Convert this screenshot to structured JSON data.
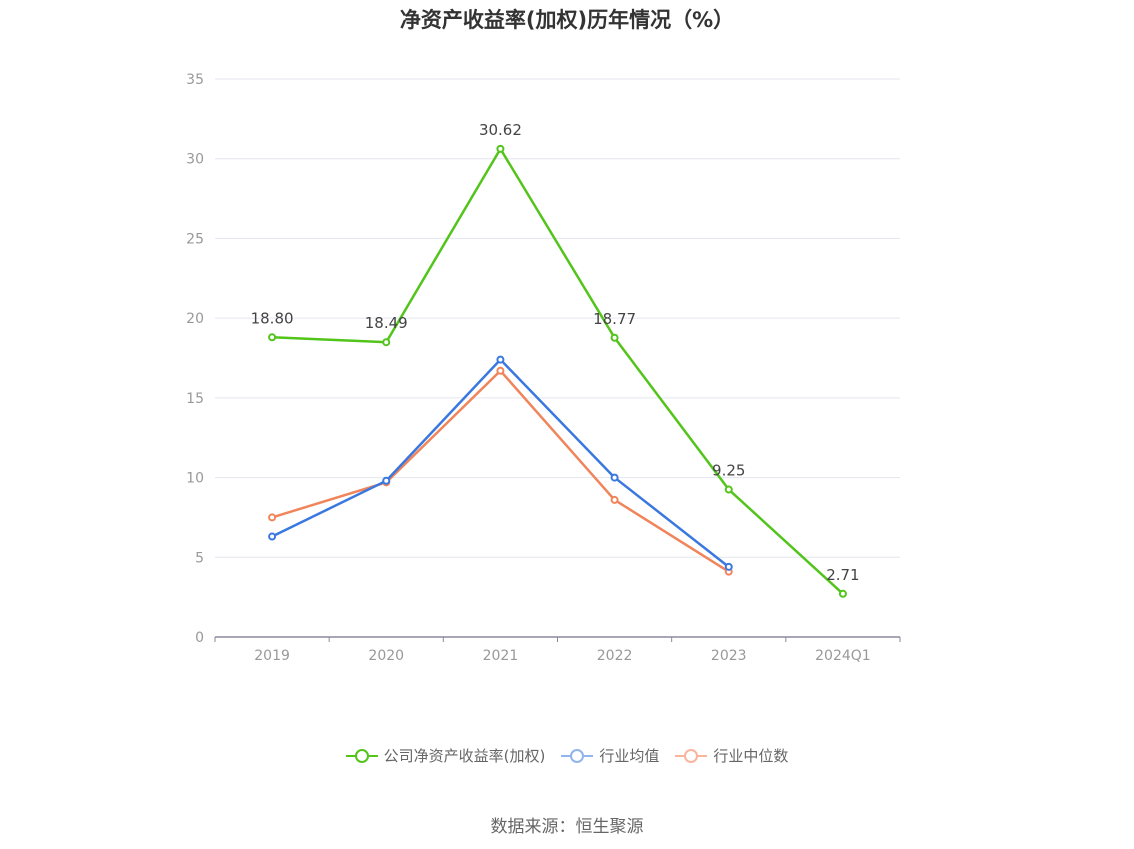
{
  "chart_data": {
    "type": "line",
    "title": "净资产收益率(加权)历年情况（%）",
    "categories": [
      "2019",
      "2020",
      "2021",
      "2022",
      "2023",
      "2024Q1"
    ],
    "ylim": [
      0,
      35
    ],
    "yticks": [
      0,
      5,
      10,
      15,
      20,
      25,
      30,
      35
    ],
    "grid": true,
    "legend_position": "bottom",
    "series": [
      {
        "name": "公司净资产收益率(加权)",
        "color": "#52c41a",
        "values": [
          18.8,
          18.49,
          30.62,
          18.77,
          9.25,
          2.71
        ],
        "labels": [
          "18.80",
          "18.49",
          "30.62",
          "18.77",
          "9.25",
          "2.71"
        ]
      },
      {
        "name": "行业均值",
        "color": "#3a78e0",
        "values": [
          6.3,
          9.8,
          17.4,
          10.0,
          4.4,
          null
        ]
      },
      {
        "name": "行业中位数",
        "color": "#f0845a",
        "values": [
          7.5,
          9.7,
          16.7,
          8.6,
          4.1,
          null
        ]
      }
    ]
  },
  "legend": {
    "items": [
      {
        "label": "公司净资产收益率(加权)",
        "color": "#52c41a"
      },
      {
        "label": "行业均值",
        "color": "#8fb4ee"
      },
      {
        "label": "行业中位数",
        "color": "#f8b49c"
      }
    ]
  },
  "source": "数据来源：恒生聚源"
}
